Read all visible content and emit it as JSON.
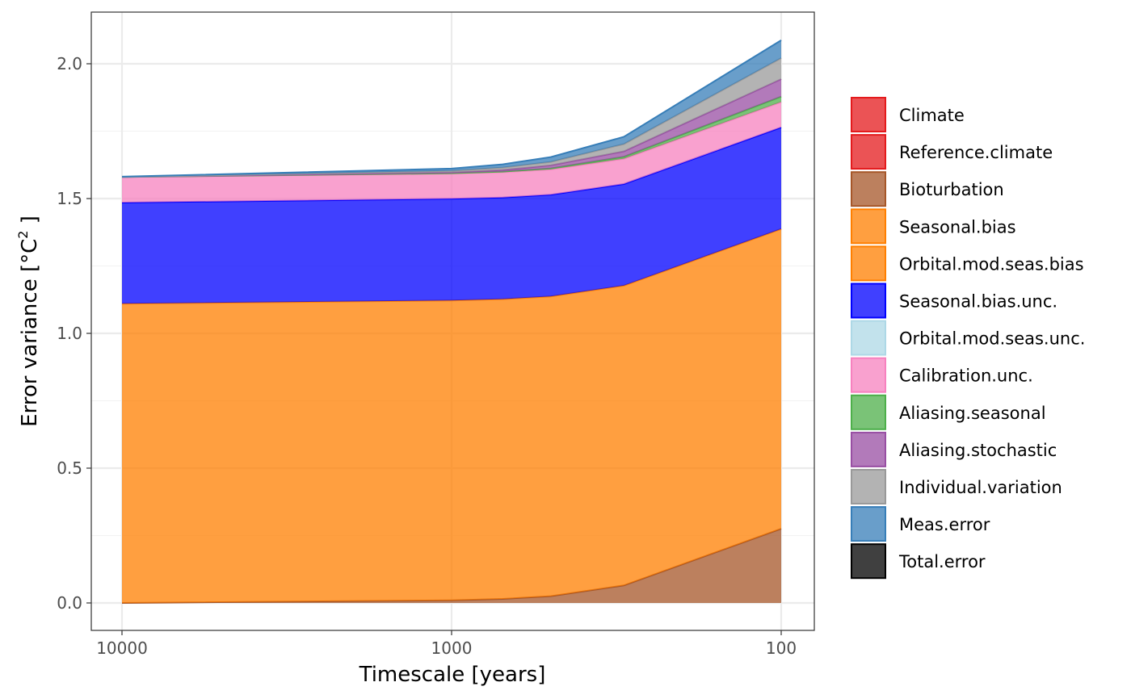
{
  "chart_data": {
    "type": "area",
    "stacked": true,
    "xlabel": "Timescale [years]",
    "ylabel": "Error variance [°C",
    "ylabel_superscript": "2",
    "ylabel_suffix": " ]",
    "x_scale": "log10",
    "x_reversed": true,
    "xlim": [
      10000,
      100
    ],
    "ylim": [
      0,
      2.1
    ],
    "x_ticks": [
      10000,
      1000,
      100
    ],
    "x_tick_labels": [
      "10000",
      "1000",
      "100"
    ],
    "y_ticks": [
      0,
      0.5,
      1,
      1.5,
      2
    ],
    "y_tick_labels": [
      "0.0",
      "0.5",
      "1.0",
      "1.5",
      "2.0"
    ],
    "grid": true,
    "legend_position": "right",
    "x": [
      10000,
      1000,
      700,
      500,
      300,
      100
    ],
    "series": [
      {
        "name": "Climate",
        "fill": "#E41A1C",
        "values": [
          0,
          0,
          0,
          0,
          0,
          0
        ]
      },
      {
        "name": "Reference.climate",
        "fill": "#E41A1C",
        "values": [
          0,
          0,
          0,
          0,
          0,
          0
        ]
      },
      {
        "name": "Bioturbation",
        "fill": "#A65628",
        "values": [
          0,
          0.01,
          0.015,
          0.025,
          0.065,
          0.275
        ]
      },
      {
        "name": "Seasonal.bias",
        "fill": "#FF7F00",
        "values": [
          1.11,
          1.112,
          1.112,
          1.112,
          1.112,
          1.112
        ]
      },
      {
        "name": "Orbital.mod.seas.bias",
        "fill": "#FF7F00",
        "values": [
          0,
          0,
          0,
          0,
          0,
          0
        ]
      },
      {
        "name": "Seasonal.bias.unc.",
        "fill": "#0000FF",
        "values": [
          0.375,
          0.377,
          0.377,
          0.377,
          0.377,
          0.377
        ]
      },
      {
        "name": "Orbital.mod.seas.unc.",
        "fill": "#ADD8E6",
        "values": [
          0,
          0,
          0,
          0,
          0,
          0
        ]
      },
      {
        "name": "Calibration.unc.",
        "fill": "#F781BF",
        "values": [
          0.095,
          0.094,
          0.094,
          0.094,
          0.094,
          0.094
        ]
      },
      {
        "name": "Aliasing.seasonal",
        "fill": "#4DAF4A",
        "values": [
          0,
          0.001,
          0.002,
          0.004,
          0.007,
          0.02
        ]
      },
      {
        "name": "Aliasing.stochastic",
        "fill": "#984EA3",
        "values": [
          0,
          0.003,
          0.006,
          0.011,
          0.02,
          0.065
        ]
      },
      {
        "name": "Individual.variation",
        "fill": "#999999",
        "values": [
          0,
          0.006,
          0.009,
          0.013,
          0.027,
          0.078
        ]
      },
      {
        "name": "Meas.error",
        "fill": "#377EB8",
        "values": [
          0.001,
          0.008,
          0.012,
          0.018,
          0.027,
          0.066
        ]
      },
      {
        "name": "Total.error",
        "fill": "#000000",
        "values": [
          0,
          0,
          0,
          0,
          0,
          0
        ]
      }
    ]
  }
}
